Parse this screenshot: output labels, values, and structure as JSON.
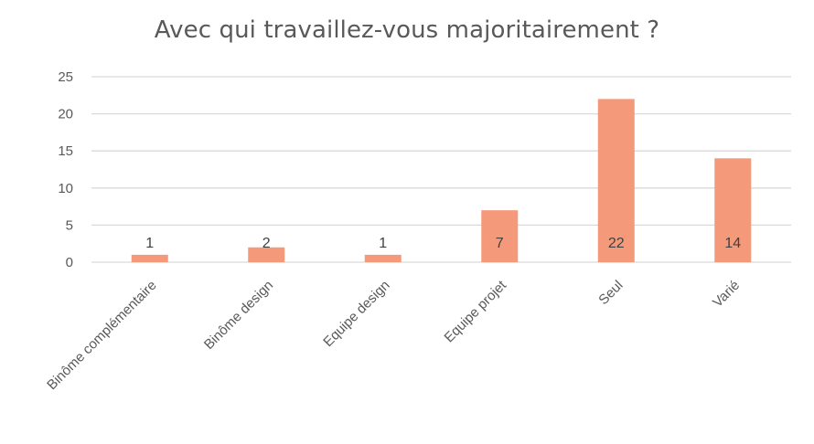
{
  "chart_data": {
    "type": "bar",
    "title": "Avec qui travaillez-vous majoritairement ?",
    "xlabel": "",
    "ylabel": "",
    "categories": [
      "Binôme complémentaire",
      "Binôme design",
      "Equipe design",
      "Equipe projet",
      "Seul",
      "Varié"
    ],
    "values": [
      1,
      2,
      1,
      7,
      22,
      14
    ],
    "data_labels": [
      "1",
      "2",
      "1",
      "7",
      "22",
      "14"
    ],
    "ylim": [
      0,
      25
    ],
    "yticks": [
      0,
      5,
      10,
      15,
      20,
      25
    ],
    "ytick_labels": [
      "0",
      "5",
      "10",
      "15",
      "20",
      "25"
    ],
    "grid": true,
    "legend": "none",
    "colors": {
      "bar": "#F4997A",
      "grid": "#D9D9D9",
      "text": "#595959",
      "data_label": "#404040"
    }
  }
}
